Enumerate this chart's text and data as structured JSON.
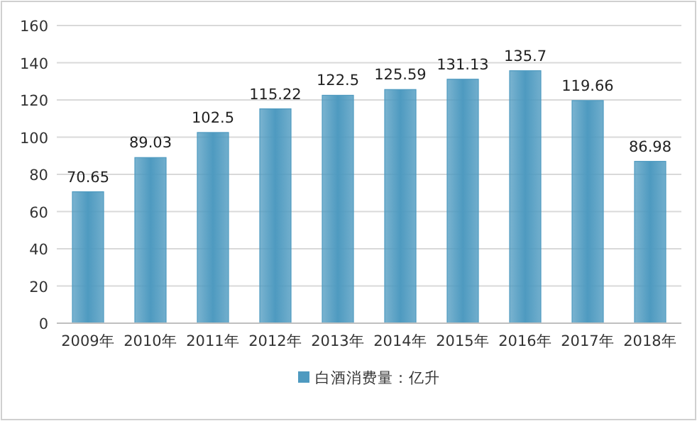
{
  "chart_data": {
    "type": "bar",
    "categories": [
      "2009年",
      "2010年",
      "2011年",
      "2012年",
      "2013年",
      "2014年",
      "2015年",
      "2016年",
      "2017年",
      "2018年"
    ],
    "series": [
      {
        "name": "白酒消费量：亿升",
        "color": "#4e9ac0",
        "values": [
          70.65,
          89.03,
          102.5,
          115.22,
          122.5,
          125.59,
          131.13,
          135.7,
          119.66,
          86.98
        ]
      }
    ],
    "ylim": [
      0,
      160
    ],
    "yticks": [
      0,
      20,
      40,
      60,
      80,
      100,
      120,
      140,
      160
    ],
    "grid": "y",
    "legend": "bottom",
    "data_labels": true
  }
}
